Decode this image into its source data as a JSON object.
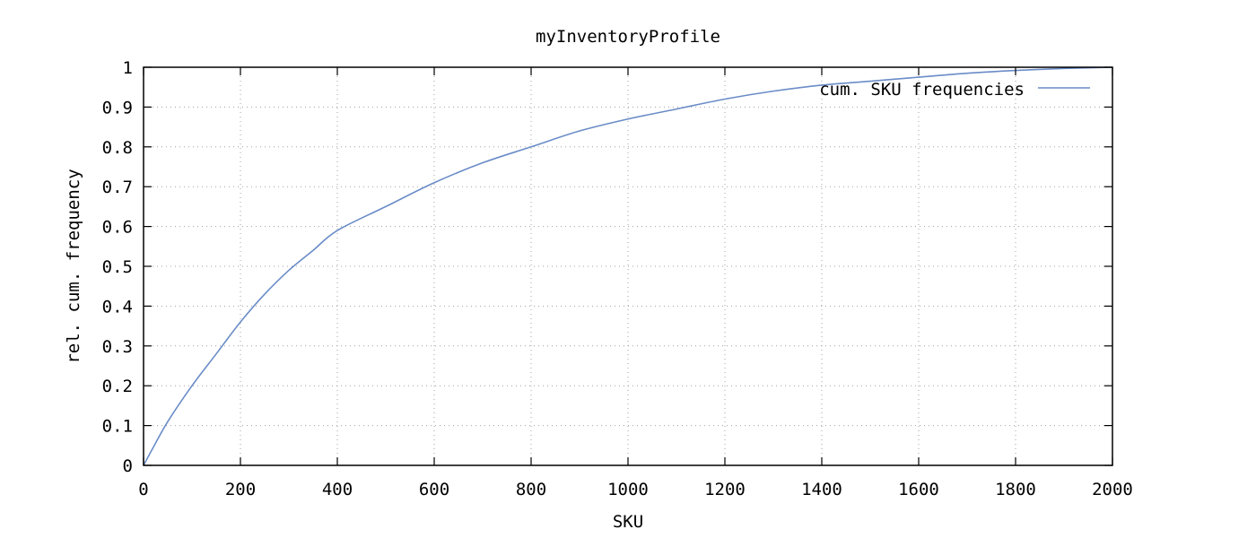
{
  "chart_data": {
    "type": "line",
    "title": "myInventoryProfile",
    "xlabel": "SKU",
    "ylabel": "rel. cum. frequency",
    "xlim": [
      0,
      2000
    ],
    "ylim": [
      0,
      1
    ],
    "xticks": [
      "0",
      "200",
      "400",
      "600",
      "800",
      "1000",
      "1200",
      "1400",
      "1600",
      "1800",
      "2000"
    ],
    "yticks": [
      "0",
      "0.1",
      "0.2",
      "0.3",
      "0.4",
      "0.5",
      "0.6",
      "0.7",
      "0.8",
      "0.9",
      "1"
    ],
    "grid": true,
    "legend_position": "top-right",
    "colors": {
      "series": "#6a8cc7",
      "axes": "#000000",
      "grid": "#a0a0a0"
    },
    "series": [
      {
        "name": "cum. SKU frequencies",
        "x": [
          0,
          20,
          50,
          100,
          150,
          200,
          250,
          300,
          350,
          400,
          500,
          600,
          700,
          800,
          900,
          1000,
          1100,
          1200,
          1300,
          1400,
          1500,
          1600,
          1700,
          1800,
          1900,
          2000
        ],
        "y": [
          0,
          0.045,
          0.11,
          0.2,
          0.28,
          0.36,
          0.43,
          0.49,
          0.54,
          0.59,
          0.65,
          0.71,
          0.76,
          0.8,
          0.84,
          0.87,
          0.895,
          0.92,
          0.94,
          0.955,
          0.965,
          0.975,
          0.985,
          0.992,
          0.997,
          1.0
        ]
      }
    ]
  }
}
